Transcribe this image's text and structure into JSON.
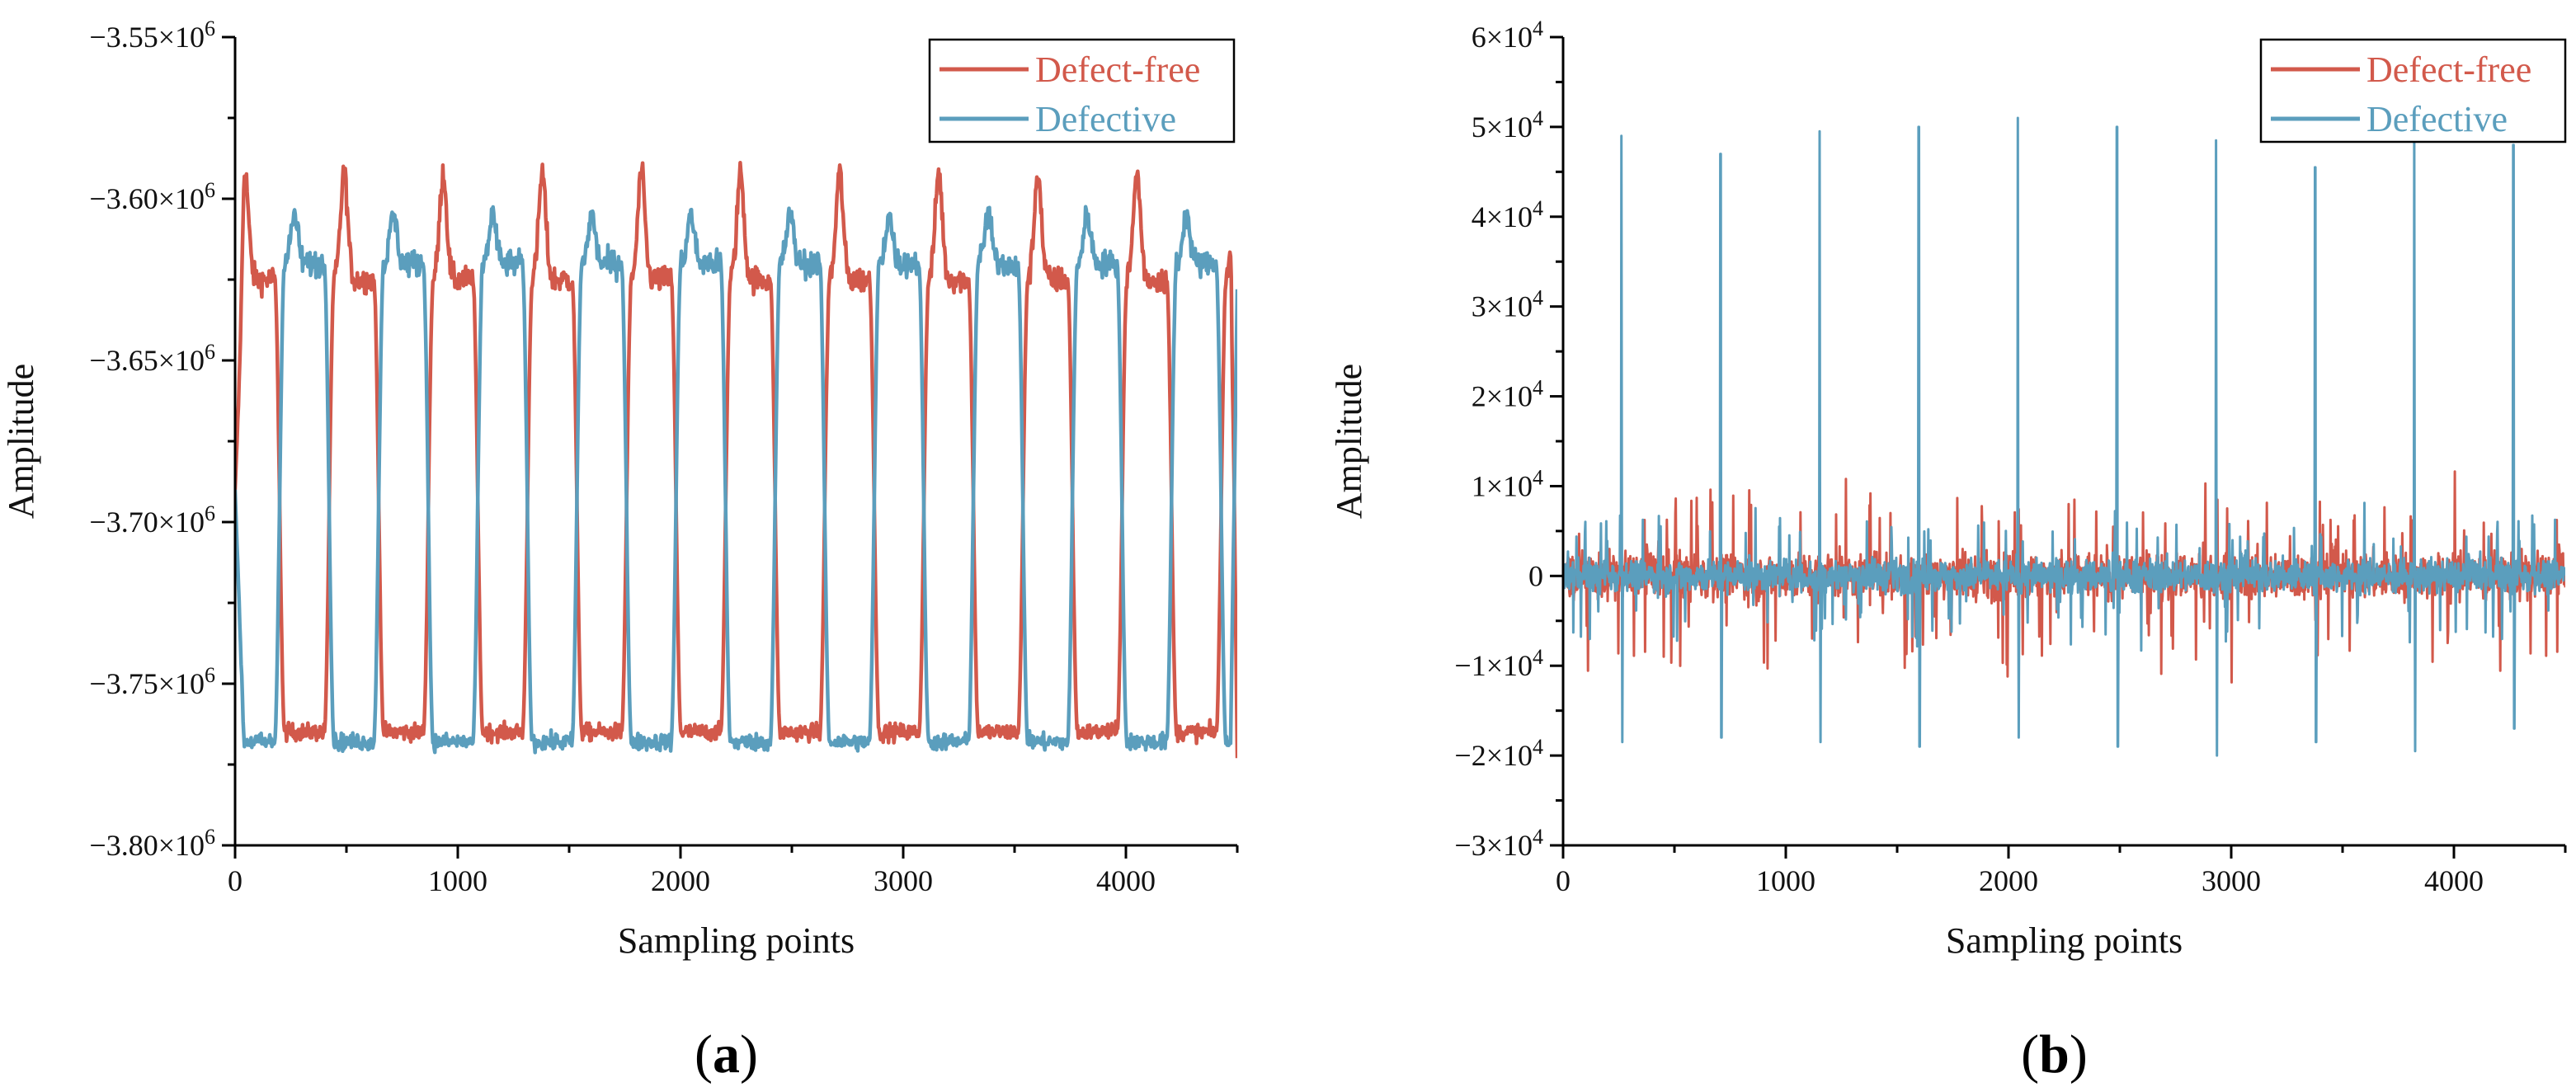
{
  "colors": {
    "defect_free": "#d2594b",
    "defective": "#5b9ebd",
    "axis": "#000000",
    "background": "#ffffff"
  },
  "chart_data": [
    {
      "panel": "a",
      "type": "line",
      "label": {
        "open": "(",
        "letter": "a",
        "close": ")"
      },
      "xlabel": "Sampling points",
      "ylabel": "Amplitude",
      "xlim": [
        0,
        4500
      ],
      "ylim": [
        -3800000,
        -3550000
      ],
      "x_ticks": [
        0,
        1000,
        2000,
        3000,
        4000
      ],
      "x_tick_labels": [
        "0",
        "1000",
        "2000",
        "3000",
        "4000"
      ],
      "y_ticks": [
        -3800000,
        -3750000,
        -3700000,
        -3650000,
        -3600000,
        -3550000
      ],
      "y_tick_labels": [
        {
          "mantissa": "−3.80×10",
          "exp": "6"
        },
        {
          "mantissa": "−3.75×10",
          "exp": "6"
        },
        {
          "mantissa": "−3.70×10",
          "exp": "6"
        },
        {
          "mantissa": "−3.65×10",
          "exp": "6"
        },
        {
          "mantissa": "−3.60×10",
          "exp": "6"
        },
        {
          "mantissa": "−3.55×10",
          "exp": "6"
        }
      ],
      "legend_position": "top-right",
      "series": [
        {
          "name": "Defect-free",
          "color_key": "defect_free",
          "kind": "periodic",
          "period": 445,
          "phase": 0,
          "high": -3625000,
          "low": -3765000,
          "peak": -3592000,
          "start": -3690000,
          "end": -3773000
        },
        {
          "name": "Defective",
          "color_key": "defective",
          "kind": "periodic",
          "period": 445,
          "phase": 222,
          "high": -3620000,
          "low": -3768000,
          "peak": -3605000,
          "start": -3690000,
          "end": -3628000
        }
      ]
    },
    {
      "panel": "b",
      "type": "line",
      "label": {
        "open": "(",
        "letter": "b",
        "close": ")"
      },
      "xlabel": "Sampling points",
      "ylabel": "Amplitude",
      "xlim": [
        0,
        4500
      ],
      "ylim": [
        -30000,
        60000
      ],
      "x_ticks": [
        0,
        1000,
        2000,
        3000,
        4000
      ],
      "x_tick_labels": [
        "0",
        "1000",
        "2000",
        "3000",
        "4000"
      ],
      "y_ticks": [
        -30000,
        -20000,
        -10000,
        0,
        10000,
        20000,
        30000,
        40000,
        50000,
        60000
      ],
      "y_tick_labels": [
        {
          "mantissa": "−3×10",
          "exp": "4"
        },
        {
          "mantissa": "−2×10",
          "exp": "4"
        },
        {
          "mantissa": "−1×10",
          "exp": "4"
        },
        {
          "mantissa": "0",
          "exp": ""
        },
        {
          "mantissa": "1×10",
          "exp": "4"
        },
        {
          "mantissa": "2×10",
          "exp": "4"
        },
        {
          "mantissa": "3×10",
          "exp": "4"
        },
        {
          "mantissa": "4×10",
          "exp": "4"
        },
        {
          "mantissa": "5×10",
          "exp": "4"
        },
        {
          "mantissa": "6×10",
          "exp": "4"
        }
      ],
      "legend_position": "top-right",
      "series": [
        {
          "name": "Defect-free",
          "color_key": "defect_free",
          "kind": "noise",
          "amplitude": 5000
        },
        {
          "name": "Defective",
          "color_key": "defective",
          "kind": "noise_spikes",
          "amplitude": 3500,
          "spikes": [
            {
              "x": 262,
              "max": 49000,
              "min": -18500
            },
            {
              "x": 707,
              "max": 47000,
              "min": -18000
            },
            {
              "x": 1152,
              "max": 49500,
              "min": -18500
            },
            {
              "x": 1597,
              "max": 50000,
              "min": -19000
            },
            {
              "x": 2042,
              "max": 51000,
              "min": -18000
            },
            {
              "x": 2487,
              "max": 50000,
              "min": -19000
            },
            {
              "x": 2932,
              "max": 48500,
              "min": -20000
            },
            {
              "x": 3377,
              "max": 45500,
              "min": -18500
            },
            {
              "x": 3822,
              "max": 50500,
              "min": -19500
            },
            {
              "x": 4267,
              "max": 48000,
              "min": -17000
            }
          ]
        }
      ]
    }
  ]
}
